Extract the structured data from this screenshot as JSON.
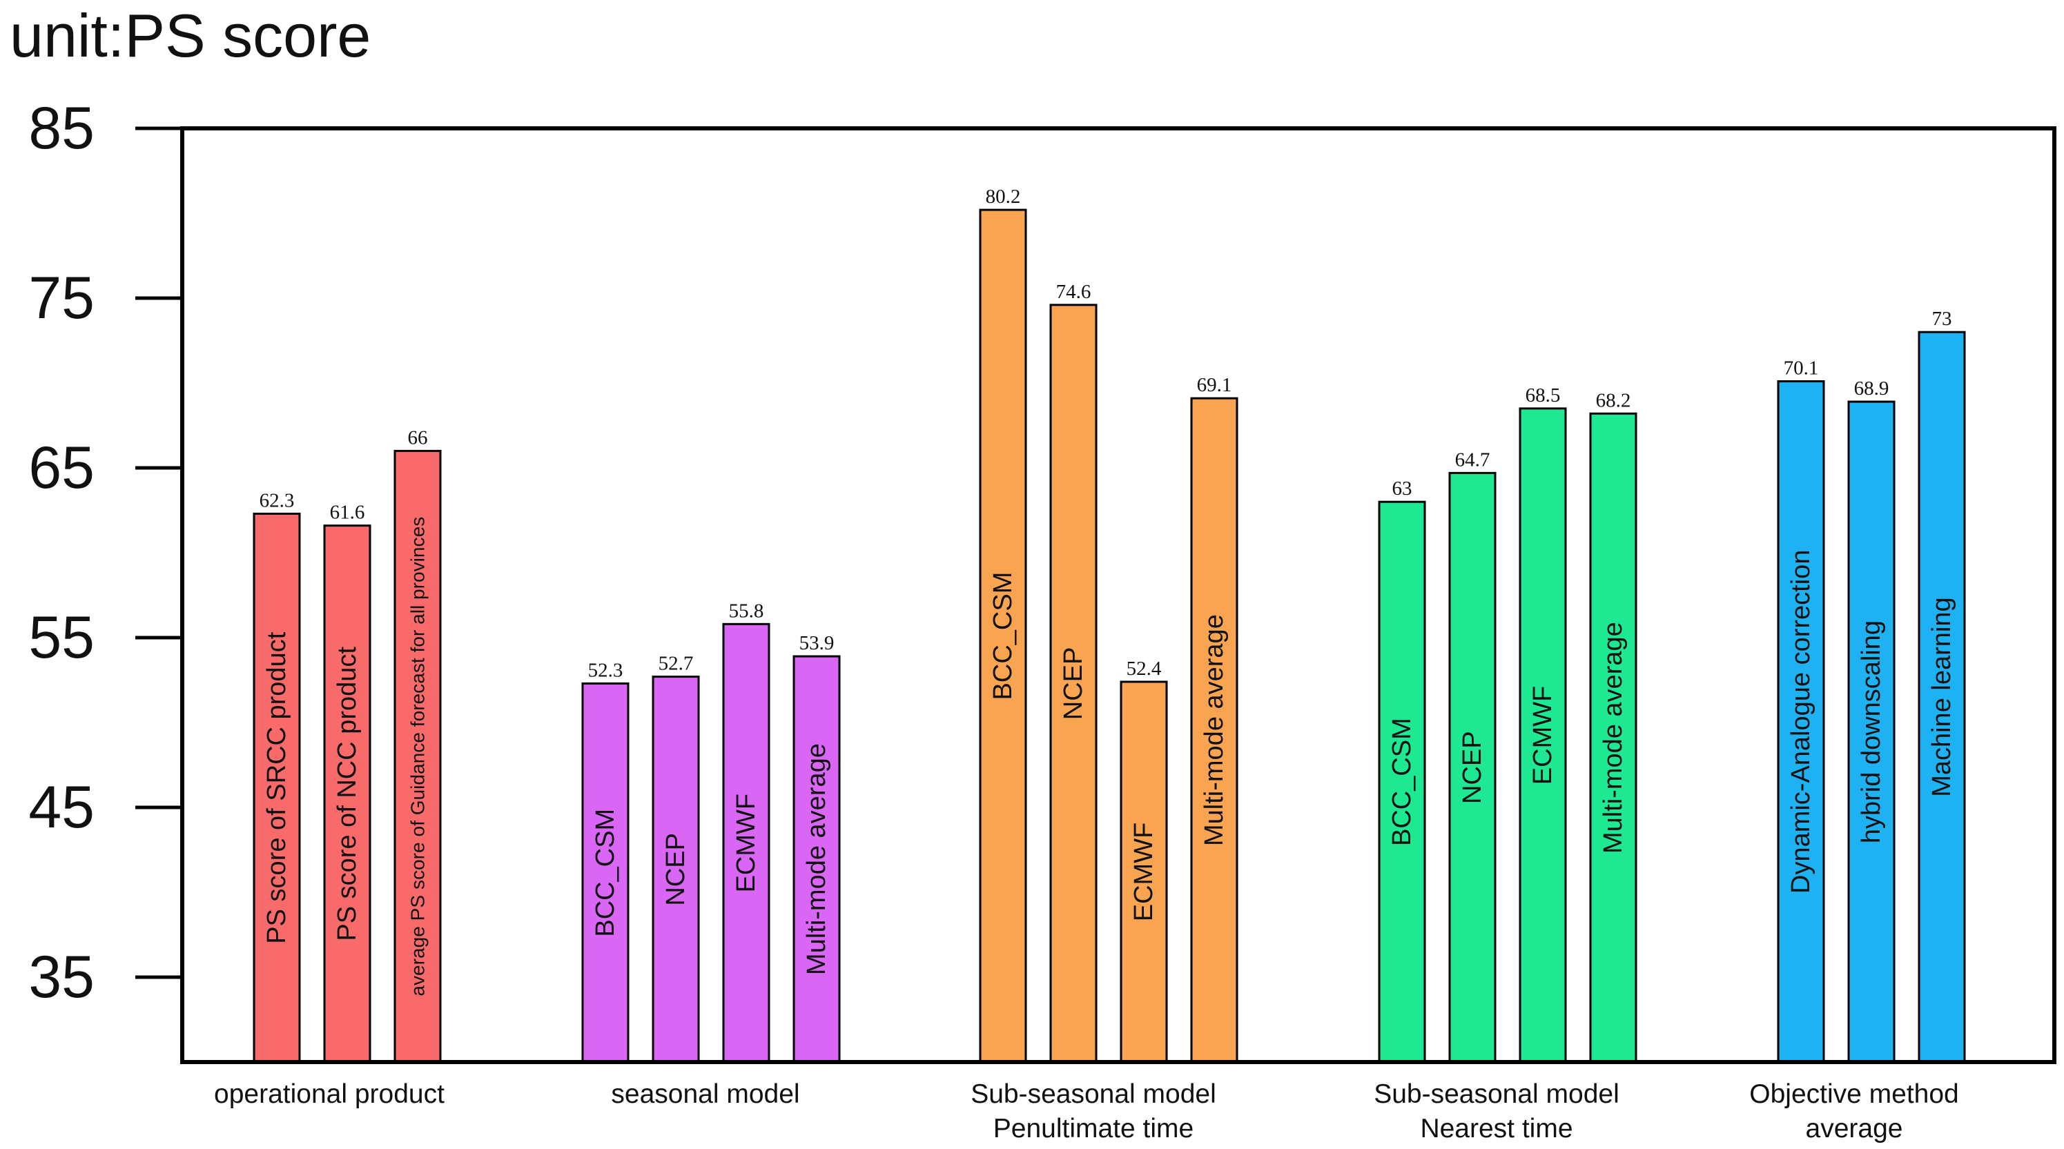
{
  "chart_data": {
    "type": "bar",
    "unit_label": "unit:PS score",
    "ylim": [
      30,
      85
    ],
    "yticks": [
      35,
      45,
      55,
      65,
      75,
      85
    ],
    "grid": false,
    "legend": "none",
    "groups": [
      {
        "label_lines": [
          "operational product"
        ],
        "color": "#F96A6A",
        "bars": [
          {
            "label": "PS score of SRCC product",
            "value": 62.3,
            "value_label": "62.3"
          },
          {
            "label": "PS score of NCC product",
            "value": 61.6,
            "value_label": "61.6"
          },
          {
            "label": "average PS score of Guidance forecast for all provinces",
            "value": 66,
            "value_label": "66"
          }
        ]
      },
      {
        "label_lines": [
          "seasonal model"
        ],
        "color": "#D966F4",
        "bars": [
          {
            "label": "BCC_CSM",
            "value": 52.3,
            "value_label": "52.3"
          },
          {
            "label": "NCEP",
            "value": 52.7,
            "value_label": "52.7"
          },
          {
            "label": "ECMWF",
            "value": 55.8,
            "value_label": "55.8"
          },
          {
            "label": "Multi-mode average",
            "value": 53.9,
            "value_label": "53.9"
          }
        ]
      },
      {
        "label_lines": [
          "Sub-seasonal model",
          "Penultimate time"
        ],
        "color": "#F9A450",
        "bars": [
          {
            "label": "BCC_CSM",
            "value": 80.2,
            "value_label": "80.2"
          },
          {
            "label": "NCEP",
            "value": 74.6,
            "value_label": "74.6"
          },
          {
            "label": "ECMWF",
            "value": 52.4,
            "value_label": "52.4"
          },
          {
            "label": "Multi-mode average",
            "value": 69.1,
            "value_label": "69.1"
          }
        ]
      },
      {
        "label_lines": [
          "Sub-seasonal model",
          "Nearest time"
        ],
        "color": "#1FE893",
        "bars": [
          {
            "label": "BCC_CSM",
            "value": 63,
            "value_label": "63"
          },
          {
            "label": "NCEP",
            "value": 64.7,
            "value_label": "64.7"
          },
          {
            "label": "ECMWF",
            "value": 68.5,
            "value_label": "68.5"
          },
          {
            "label": "Multi-mode average",
            "value": 68.2,
            "value_label": "68.2"
          }
        ]
      },
      {
        "label_lines": [
          "Objective method",
          "average"
        ],
        "color": "#1EB2F2",
        "bars": [
          {
            "label": "Dynamic-Analogue correction",
            "value": 70.1,
            "value_label": "70.1"
          },
          {
            "label": "hybrid downscaling",
            "value": 68.9,
            "value_label": "68.9"
          },
          {
            "label": "Machine learning",
            "value": 73,
            "value_label": "73"
          }
        ]
      }
    ]
  }
}
